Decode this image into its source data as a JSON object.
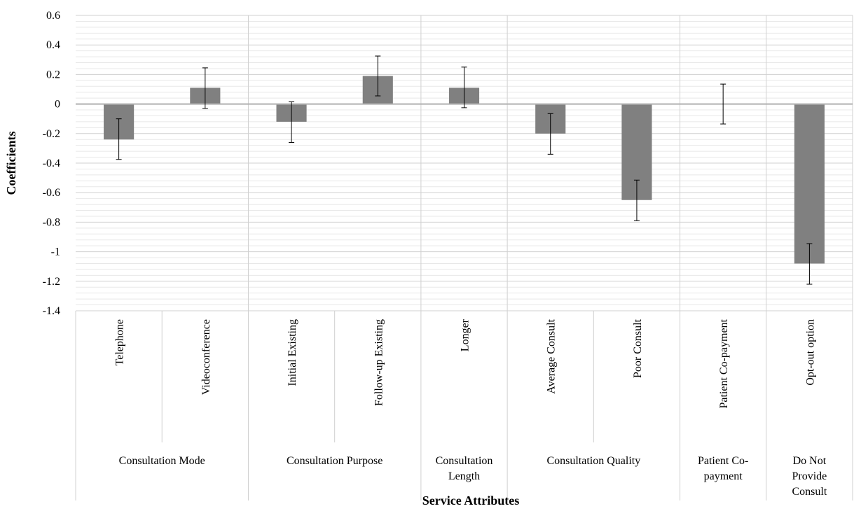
{
  "chart_data": {
    "type": "bar",
    "xlabel": "Service Attributes",
    "ylabel": "Coefficients",
    "ylim": [
      -1.4,
      0.6
    ],
    "yticks": [
      "0.6",
      "0.4",
      "0.2",
      "0",
      "-0.2",
      "-0.4",
      "-0.6",
      "-0.8",
      "-1",
      "-1.2",
      "-1.4"
    ],
    "ytick_values": [
      0.6,
      0.4,
      0.2,
      0,
      -0.2,
      -0.4,
      -0.6,
      -0.8,
      -1,
      -1.2,
      -1.4
    ],
    "grid": true,
    "bar_color": "#808080",
    "gridline_color": "#d9d9d9",
    "categories": [
      "Telephone",
      "Videoconference",
      "Initial Existing",
      "Follow-up Existing",
      "Longer",
      "Average Consult",
      "Poor Consult",
      "Patient Co-payment",
      "Opt-out option"
    ],
    "values": [
      -0.24,
      0.11,
      -0.12,
      0.19,
      0.11,
      -0.2,
      -0.65,
      0.0,
      -1.08
    ],
    "error_low": [
      -0.375,
      -0.03,
      -0.26,
      0.055,
      -0.025,
      -0.34,
      -0.79,
      -0.135,
      -1.22
    ],
    "error_high": [
      -0.1,
      0.245,
      0.015,
      0.325,
      0.25,
      -0.065,
      -0.515,
      0.135,
      -0.945
    ],
    "groups": [
      {
        "lines": [
          "Consultation Mode"
        ],
        "span": [
          0,
          1
        ]
      },
      {
        "lines": [
          "Consultation Purpose"
        ],
        "span": [
          2,
          3
        ]
      },
      {
        "lines": [
          "Consultation",
          "Length"
        ],
        "span": [
          4,
          4
        ]
      },
      {
        "lines": [
          "Consultation Quality"
        ],
        "span": [
          5,
          6
        ]
      },
      {
        "lines": [
          "Patient Co-",
          "payment"
        ],
        "span": [
          7,
          7
        ]
      },
      {
        "lines": [
          "Do Not",
          "Provide",
          "Consult"
        ],
        "span": [
          8,
          8
        ]
      }
    ]
  }
}
